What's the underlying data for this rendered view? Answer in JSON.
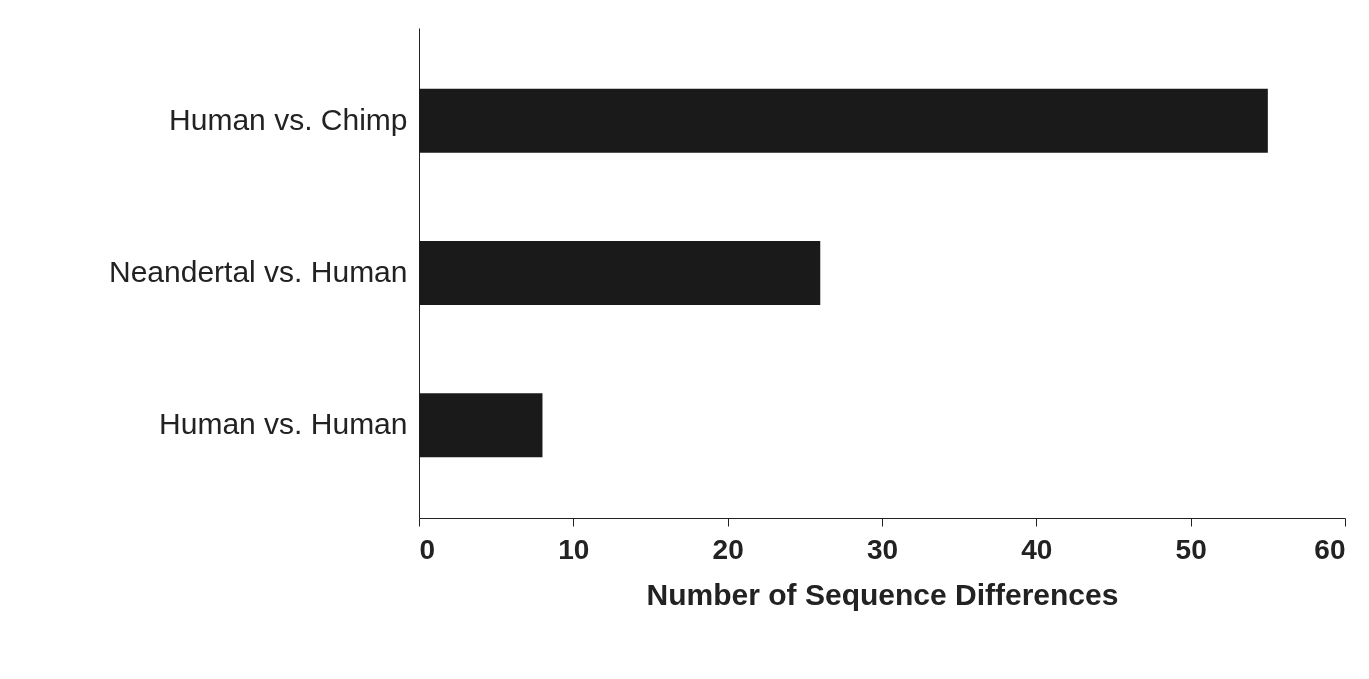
{
  "chart_data": {
    "type": "bar",
    "orientation": "horizontal",
    "categories": [
      "Human vs. Chimp",
      "Neandertal vs. Human",
      "Human vs. Human"
    ],
    "values": [
      55,
      26,
      8
    ],
    "color": "#1a1a1a",
    "xlabel": "Number of Sequence Differences",
    "xlim": [
      0,
      60
    ],
    "xticks": [
      0,
      10,
      20,
      30,
      40,
      50,
      60
    ],
    "grid": false
  }
}
